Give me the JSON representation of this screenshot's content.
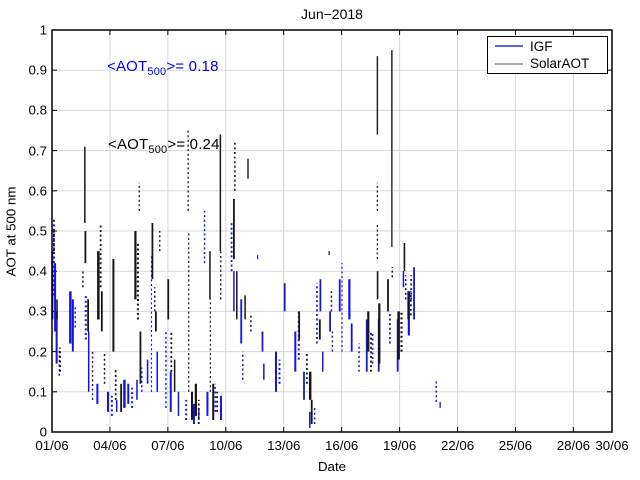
{
  "title": "Jun−2018",
  "axis": {
    "xlabel": "Date",
    "ylabel": "AOT at 500 nm"
  },
  "annotations": {
    "igf": {
      "prefix": "<AOT",
      "sub": "500",
      "suffix": ">= 0.18",
      "color": "#0000EE"
    },
    "solar": {
      "prefix": "<AOT",
      "sub": "500",
      "suffix": ">= 0.24",
      "color": "#000000"
    }
  },
  "legend": {
    "items": [
      {
        "label": "IGF",
        "line_color": "#6262E2"
      },
      {
        "label": "SolarAOT",
        "line_color": "#ABABAB"
      }
    ]
  },
  "colors": {
    "grid": "#D7D7D7",
    "axis": "#000000",
    "background": "#FFFFFF"
  },
  "chart_data": {
    "type": "scatter",
    "title": "Jun−2018",
    "xlabel": "Date",
    "ylabel": "AOT at 500 nm",
    "ylim": [
      0,
      1
    ],
    "xlim_days": [
      1,
      30
    ],
    "grid": true,
    "legend_position": "top-right",
    "x_ticks": {
      "days": [
        1,
        4,
        7,
        10,
        13,
        16,
        19,
        22,
        25,
        28,
        30
      ],
      "labels": [
        "01/06",
        "04/06",
        "07/06",
        "10/06",
        "13/06",
        "16/06",
        "19/06",
        "22/06",
        "25/06",
        "28/06",
        "30/06"
      ]
    },
    "y_ticks": {
      "values": [
        0,
        0.1,
        0.2,
        0.3,
        0.4,
        0.5,
        0.6,
        0.7,
        0.8,
        0.9,
        1
      ],
      "labels": [
        "0",
        "0.1",
        "0.2",
        "0.3",
        "0.4",
        "0.5",
        "0.6",
        "0.7",
        "0.8",
        "0.9",
        "1"
      ]
    },
    "strands_format": "[day_of_june, aot_min, aot_max, width_px, dashed01]",
    "series": [
      {
        "name": "IGF",
        "color": "#1414DC",
        "mean_aot_500": 0.18,
        "strands": [
          [
            1.02,
            0.28,
            0.45,
            2,
            0
          ],
          [
            1.1,
            0.34,
            0.53,
            2,
            1
          ],
          [
            1.16,
            0.25,
            0.42,
            2,
            0
          ],
          [
            1.24,
            0.17,
            0.3,
            2,
            0
          ],
          [
            1.38,
            0.14,
            0.21,
            1.5,
            1
          ],
          [
            1.95,
            0.22,
            0.35,
            2.5,
            0
          ],
          [
            2.08,
            0.2,
            0.33,
            2,
            0
          ],
          [
            2.2,
            0.26,
            0.31,
            1.5,
            1
          ],
          [
            2.75,
            0.23,
            0.34,
            2,
            1
          ],
          [
            2.9,
            0.1,
            0.25,
            1.5,
            0
          ],
          [
            3.1,
            0.08,
            0.2,
            1.5,
            1
          ],
          [
            3.35,
            0.07,
            0.12,
            2,
            0
          ],
          [
            3.9,
            0.05,
            0.1,
            2,
            0
          ],
          [
            4.1,
            0.04,
            0.09,
            2,
            1
          ],
          [
            4.35,
            0.05,
            0.08,
            1.5,
            0
          ],
          [
            4.75,
            0.06,
            0.13,
            2.5,
            0
          ],
          [
            4.95,
            0.07,
            0.12,
            2,
            0
          ],
          [
            5.15,
            0.06,
            0.11,
            2,
            1
          ],
          [
            5.4,
            0.08,
            0.13,
            1.5,
            0
          ],
          [
            5.65,
            0.1,
            0.16,
            1.5,
            1
          ],
          [
            5.95,
            0.12,
            0.18,
            1.5,
            0
          ],
          [
            6.15,
            0.1,
            0.44,
            1.2,
            1
          ],
          [
            6.45,
            0.1,
            0.2,
            1.5,
            0
          ],
          [
            6.9,
            0.06,
            0.25,
            1.5,
            1
          ],
          [
            7.15,
            0.05,
            0.15,
            2,
            0
          ],
          [
            7.55,
            0.04,
            0.1,
            1.5,
            0
          ],
          [
            7.95,
            0.03,
            0.08,
            2,
            1
          ],
          [
            8.35,
            0.02,
            0.07,
            2,
            0
          ],
          [
            8.6,
            0.03,
            0.06,
            1.5,
            0
          ],
          [
            8.9,
            0.42,
            0.55,
            1.5,
            1
          ],
          [
            9.05,
            0.04,
            0.1,
            2,
            0
          ],
          [
            9.45,
            0.05,
            0.12,
            1.5,
            1
          ],
          [
            9.75,
            0.03,
            0.09,
            2,
            0
          ],
          [
            10.3,
            0.4,
            0.52,
            1.8,
            1
          ],
          [
            10.42,
            0.3,
            0.4,
            1.5,
            0
          ],
          [
            10.8,
            0.22,
            0.33,
            1.8,
            0
          ],
          [
            10.88,
            0.13,
            0.2,
            1.5,
            1
          ],
          [
            11.65,
            0.43,
            0.44,
            1.2,
            0
          ],
          [
            11.9,
            0.2,
            0.25,
            1.8,
            0
          ],
          [
            11.97,
            0.13,
            0.17,
            1.5,
            0
          ],
          [
            12.6,
            0.1,
            0.2,
            2,
            0
          ],
          [
            12.78,
            0.12,
            0.18,
            2,
            1
          ],
          [
            13.05,
            0.3,
            0.37,
            1.8,
            0
          ],
          [
            13.6,
            0.15,
            0.25,
            2,
            0
          ],
          [
            13.78,
            0.18,
            0.3,
            2,
            1
          ],
          [
            14.05,
            0.08,
            0.15,
            1.8,
            0
          ],
          [
            14.35,
            0.01,
            0.05,
            1.5,
            0
          ],
          [
            14.6,
            0.02,
            0.06,
            1.5,
            1
          ],
          [
            14.72,
            0.22,
            0.37,
            1.8,
            1
          ],
          [
            14.9,
            0.3,
            0.38,
            1.8,
            0
          ],
          [
            15.02,
            0.15,
            0.2,
            1.5,
            0
          ],
          [
            15.4,
            0.25,
            0.3,
            1.8,
            0
          ],
          [
            15.52,
            0.2,
            0.25,
            1.5,
            1
          ],
          [
            15.9,
            0.3,
            0.38,
            1.8,
            0
          ],
          [
            16.02,
            0.2,
            0.42,
            1.2,
            1
          ],
          [
            16.4,
            0.28,
            0.38,
            2.2,
            0
          ],
          [
            16.52,
            0.2,
            0.27,
            1.8,
            0
          ],
          [
            16.9,
            0.15,
            0.22,
            1.5,
            1
          ],
          [
            17.3,
            0.15,
            0.28,
            1.8,
            0
          ],
          [
            17.6,
            0.17,
            0.25,
            1.8,
            1
          ],
          [
            17.92,
            0.15,
            0.28,
            1.8,
            0
          ],
          [
            18.5,
            0.22,
            0.3,
            1.8,
            1
          ],
          [
            18.9,
            0.15,
            0.28,
            1.8,
            0
          ],
          [
            19.2,
            0.36,
            0.4,
            1.5,
            0
          ],
          [
            19.48,
            0.24,
            0.35,
            2.2,
            0
          ],
          [
            19.6,
            0.33,
            0.39,
            1.8,
            1
          ],
          [
            19.75,
            0.28,
            0.41,
            1.8,
            0
          ],
          [
            20.9,
            0.075,
            0.13,
            1.5,
            1
          ],
          [
            21.1,
            0.06,
            0.075,
            1.3,
            0
          ]
        ]
      },
      {
        "name": "SolarAOT",
        "color": "#161616",
        "mean_aot_500": 0.24,
        "strands": [
          [
            1.1,
            0.45,
            0.5,
            1.8,
            1
          ],
          [
            1.26,
            0.28,
            0.33,
            1.5,
            0
          ],
          [
            1.42,
            0.15,
            0.21,
            1.8,
            1
          ],
          [
            2.6,
            0.36,
            0.4,
            1.5,
            1
          ],
          [
            2.7,
            0.52,
            0.71,
            1.5,
            0
          ],
          [
            2.73,
            0.42,
            0.5,
            1.8,
            0
          ],
          [
            2.87,
            0.25,
            0.33,
            1.8,
            0
          ],
          [
            3.4,
            0.28,
            0.45,
            2.5,
            0
          ],
          [
            3.52,
            0.36,
            0.52,
            1.8,
            1
          ],
          [
            3.58,
            0.25,
            0.35,
            1.8,
            0
          ],
          [
            3.72,
            0.12,
            0.2,
            1.5,
            1
          ],
          [
            4.18,
            0.2,
            0.43,
            2,
            0
          ],
          [
            4.3,
            0.08,
            0.16,
            1.8,
            1
          ],
          [
            4.58,
            0.05,
            0.12,
            1.8,
            0
          ],
          [
            5.32,
            0.33,
            0.5,
            2.2,
            0
          ],
          [
            5.45,
            0.28,
            0.47,
            2,
            1
          ],
          [
            5.52,
            0.55,
            0.62,
            1.3,
            1
          ],
          [
            5.58,
            0.12,
            0.25,
            1.8,
            0
          ],
          [
            6.2,
            0.38,
            0.52,
            1.8,
            0
          ],
          [
            6.32,
            0.3,
            0.36,
            1.5,
            1
          ],
          [
            6.38,
            0.25,
            0.3,
            1.8,
            0
          ],
          [
            6.58,
            0.45,
            0.5,
            1.3,
            1
          ],
          [
            7.02,
            0.28,
            0.38,
            1.8,
            0
          ],
          [
            7.18,
            0.15,
            0.25,
            1.8,
            1
          ],
          [
            7.35,
            0.1,
            0.18,
            1.5,
            0
          ],
          [
            8.05,
            0.55,
            0.75,
            1.3,
            1
          ],
          [
            8.08,
            0.1,
            0.5,
            1.2,
            1
          ],
          [
            8.25,
            0.03,
            0.1,
            2,
            0
          ],
          [
            8.45,
            0.04,
            0.12,
            2.2,
            0
          ],
          [
            8.6,
            0.02,
            0.08,
            1.8,
            1
          ],
          [
            9.18,
            0.33,
            0.45,
            1.5,
            0
          ],
          [
            9.2,
            0.1,
            0.33,
            1.2,
            1
          ],
          [
            9.35,
            0.03,
            0.12,
            2,
            0
          ],
          [
            9.55,
            0.05,
            0.1,
            1.8,
            1
          ],
          [
            9.72,
            0.45,
            0.74,
            1.5,
            0
          ],
          [
            9.74,
            0.33,
            0.45,
            1.3,
            1
          ],
          [
            10.42,
            0.43,
            0.58,
            1.8,
            0
          ],
          [
            10.47,
            0.6,
            0.72,
            1.5,
            1
          ],
          [
            10.57,
            0.28,
            0.4,
            1.5,
            0
          ],
          [
            11.0,
            0.28,
            0.34,
            1.5,
            0
          ],
          [
            11.15,
            0.63,
            0.68,
            1.4,
            0
          ],
          [
            11.3,
            0.25,
            0.29,
            1.5,
            1
          ],
          [
            13.8,
            0.23,
            0.3,
            1.8,
            0
          ],
          [
            14.2,
            0.12,
            0.2,
            1.8,
            1
          ],
          [
            14.37,
            0.08,
            0.15,
            2.5,
            0
          ],
          [
            14.45,
            0.02,
            0.08,
            1.8,
            0
          ],
          [
            14.87,
            0.23,
            0.28,
            1.8,
            0
          ],
          [
            15.35,
            0.44,
            0.45,
            1.2,
            0
          ],
          [
            15.47,
            0.3,
            0.35,
            1.5,
            1
          ],
          [
            17.38,
            0.2,
            0.3,
            2.2,
            0
          ],
          [
            17.52,
            0.15,
            0.25,
            1.8,
            1
          ],
          [
            17.85,
            0.74,
            0.935,
            1.4,
            0
          ],
          [
            17.85,
            0.55,
            0.62,
            1.3,
            1
          ],
          [
            17.85,
            0.43,
            0.52,
            1.3,
            1
          ],
          [
            17.86,
            0.33,
            0.4,
            1.6,
            0
          ],
          [
            17.95,
            0.17,
            0.32,
            2.2,
            0
          ],
          [
            18.4,
            0.3,
            0.38,
            1.8,
            0
          ],
          [
            18.6,
            0.7,
            0.95,
            1.4,
            0
          ],
          [
            18.6,
            0.46,
            0.7,
            1.3,
            0
          ],
          [
            18.62,
            0.385,
            0.41,
            1.5,
            1
          ],
          [
            18.95,
            0.18,
            0.3,
            2.5,
            0
          ],
          [
            19.1,
            0.2,
            0.3,
            2.2,
            1
          ],
          [
            19.25,
            0.4,
            0.47,
            1.6,
            0
          ],
          [
            19.32,
            0.33,
            0.39,
            1.5,
            1
          ],
          [
            19.45,
            0.28,
            0.35,
            1.8,
            0
          ],
          [
            19.58,
            0.29,
            0.35,
            1.8,
            1
          ]
        ]
      }
    ]
  }
}
